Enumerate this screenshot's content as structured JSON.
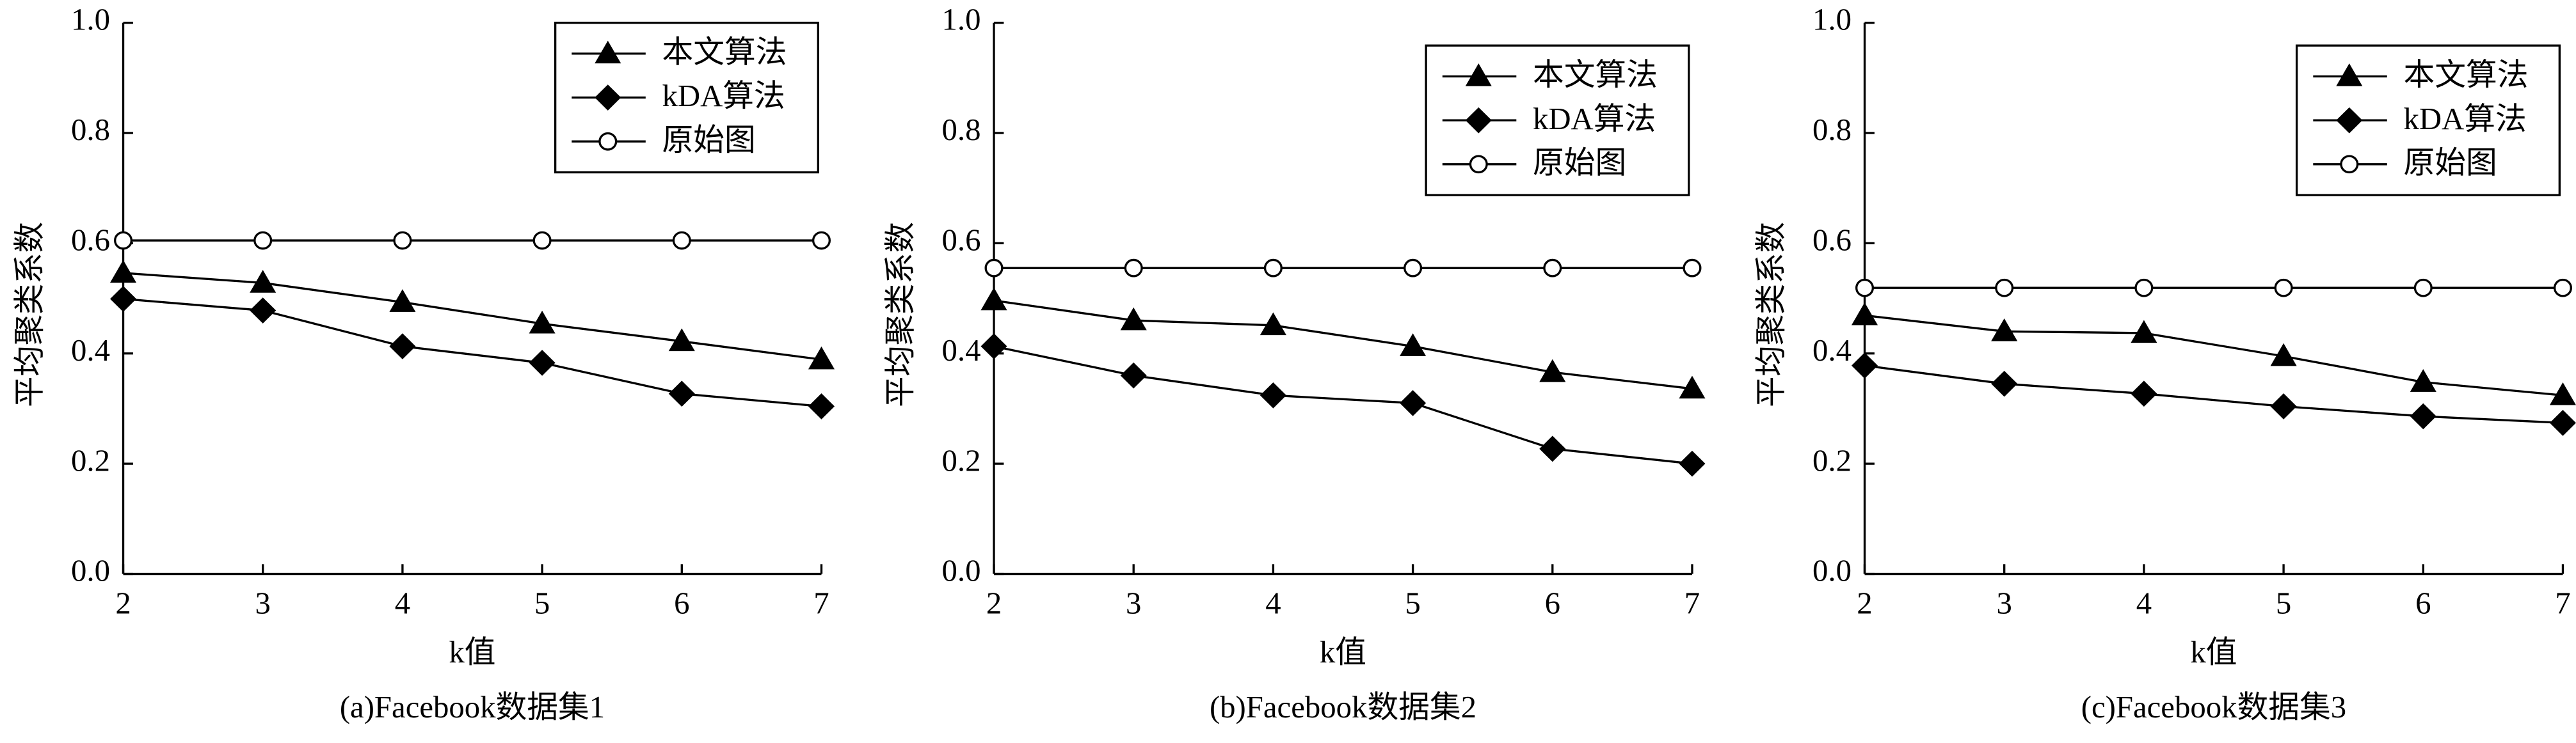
{
  "chart_data": [
    {
      "type": "line",
      "title": "(a)Facebook数据集1",
      "xlabel": "k值",
      "ylabel": "平均聚类系数",
      "x": [
        2,
        3,
        4,
        5,
        6,
        7
      ],
      "xlim": [
        2,
        7
      ],
      "xticks": [
        2,
        3,
        4,
        5,
        6,
        7
      ],
      "ylim": [
        0,
        1
      ],
      "yticks": [
        {
          "value": 0,
          "label": "0.0"
        },
        0.2,
        0.4,
        0.6,
        0.8,
        {
          "value": 1,
          "label": "1.0"
        }
      ],
      "legend": "upper right",
      "series": [
        {
          "name": "本文算法",
          "color": "#000000",
          "marker": "triangle",
          "values": [
            0.546,
            0.528,
            0.493,
            0.454,
            0.422,
            0.389
          ]
        },
        {
          "name": "kDA算法",
          "color": "#000000",
          "marker": "diamond",
          "values": [
            0.499,
            0.478,
            0.413,
            0.383,
            0.327,
            0.304
          ]
        },
        {
          "name": "原始图",
          "color": "#000000",
          "marker": "open-circle",
          "values": [
            0.605,
            0.605,
            0.605,
            0.605,
            0.605,
            0.605
          ]
        }
      ]
    },
    {
      "type": "line",
      "title": "(b)Facebook数据集2",
      "xlabel": "k值",
      "ylabel": "平均聚类系数",
      "x": [
        2,
        3,
        4,
        5,
        6,
        7
      ],
      "xlim": [
        2,
        7
      ],
      "xticks": [
        2,
        3,
        4,
        5,
        6,
        7
      ],
      "ylim": [
        0,
        1
      ],
      "yticks": [
        {
          "value": 0,
          "label": "0.0"
        },
        0.2,
        0.4,
        0.6,
        0.8,
        {
          "value": 1,
          "label": "1.0"
        }
      ],
      "legend": "upper right",
      "series": [
        {
          "name": "本文算法",
          "color": "#000000",
          "marker": "triangle",
          "values": [
            0.496,
            0.46,
            0.451,
            0.413,
            0.366,
            0.336
          ]
        },
        {
          "name": "kDA算法",
          "color": "#000000",
          "marker": "diamond",
          "values": [
            0.413,
            0.36,
            0.324,
            0.31,
            0.227,
            0.2
          ]
        },
        {
          "name": "原始图",
          "color": "#000000",
          "marker": "open-circle",
          "values": [
            0.555,
            0.555,
            0.555,
            0.555,
            0.555,
            0.555
          ]
        }
      ]
    },
    {
      "type": "line",
      "title": "(c)Facebook数据集3",
      "xlabel": "k值",
      "ylabel": "平均聚类系数",
      "x": [
        2,
        3,
        4,
        5,
        6,
        7
      ],
      "xlim": [
        2,
        7
      ],
      "xticks": [
        2,
        3,
        4,
        5,
        6,
        7
      ],
      "ylim": [
        0,
        1
      ],
      "yticks": [
        {
          "value": 0,
          "label": "0.0"
        },
        0.2,
        0.4,
        0.6,
        0.8,
        {
          "value": 1,
          "label": "1.0"
        }
      ],
      "legend": "upper right",
      "series": [
        {
          "name": "本文算法",
          "color": "#000000",
          "marker": "triangle",
          "values": [
            0.469,
            0.44,
            0.437,
            0.395,
            0.348,
            0.324
          ]
        },
        {
          "name": "kDA算法",
          "color": "#000000",
          "marker": "diamond",
          "values": [
            0.378,
            0.345,
            0.327,
            0.304,
            0.286,
            0.274
          ]
        },
        {
          "name": "原始图",
          "color": "#000000",
          "marker": "open-circle",
          "values": [
            0.519,
            0.519,
            0.519,
            0.519,
            0.519,
            0.519
          ]
        }
      ]
    }
  ]
}
